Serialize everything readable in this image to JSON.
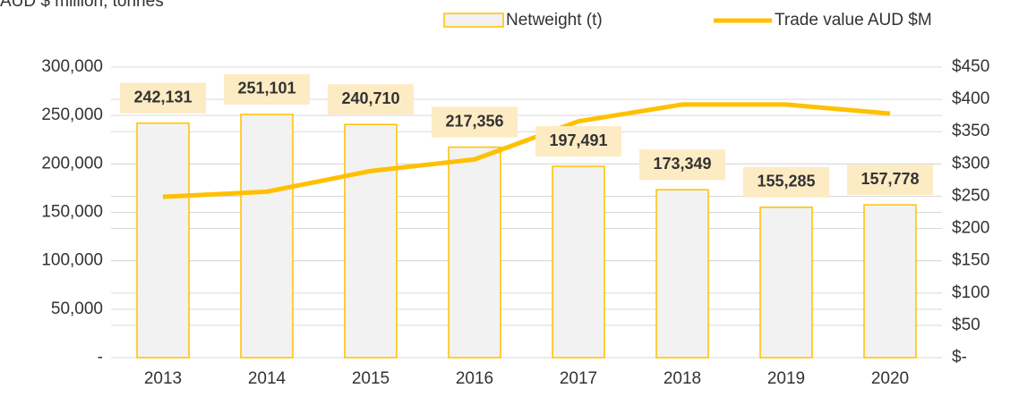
{
  "chart_data": {
    "type": "bar_line",
    "title": "AUD $ million, tonnes",
    "categories": [
      "2013",
      "2014",
      "2015",
      "2016",
      "2017",
      "2018",
      "2019",
      "2020"
    ],
    "series": [
      {
        "name": "Netweight (t)",
        "type": "bar",
        "color": "#f2f2f2",
        "edge": "#ffc000",
        "values": [
          242131,
          251101,
          240710,
          217356,
          197491,
          173349,
          155285,
          157778
        ],
        "value_labels": [
          "242,131",
          "251,101",
          "240,710",
          "217,356",
          "197,491",
          "173,349",
          "155,285",
          "157,778"
        ]
      },
      {
        "name": "Trade value AUD $M",
        "type": "line",
        "axis": "y2",
        "color": "#ffc000",
        "values": [
          249,
          257,
          289,
          307,
          366,
          392,
          392,
          378
        ]
      }
    ],
    "ylim": [
      0,
      300000
    ],
    "yticks": [
      {
        "value": 0,
        "label": "-"
      },
      {
        "value": 50000,
        "label": "50,000"
      },
      {
        "value": 100000,
        "label": "100,000"
      },
      {
        "value": 150000,
        "label": "150,000"
      },
      {
        "value": 200000,
        "label": "200,000"
      },
      {
        "value": 250000,
        "label": "250,000"
      },
      {
        "value": 300000,
        "label": "300,000"
      }
    ],
    "y2lim": [
      0,
      450
    ],
    "y2ticks": [
      {
        "value": 0,
        "label": "$-"
      },
      {
        "value": 50,
        "label": "$50"
      },
      {
        "value": 100,
        "label": "$100"
      },
      {
        "value": 150,
        "label": "$150"
      },
      {
        "value": 200,
        "label": "$200"
      },
      {
        "value": 250,
        "label": "$250"
      },
      {
        "value": 300,
        "label": "$300"
      },
      {
        "value": 350,
        "label": "$350"
      },
      {
        "value": 400,
        "label": "$400"
      },
      {
        "value": 450,
        "label": "$450"
      }
    ],
    "grid": true,
    "legend": "top"
  }
}
